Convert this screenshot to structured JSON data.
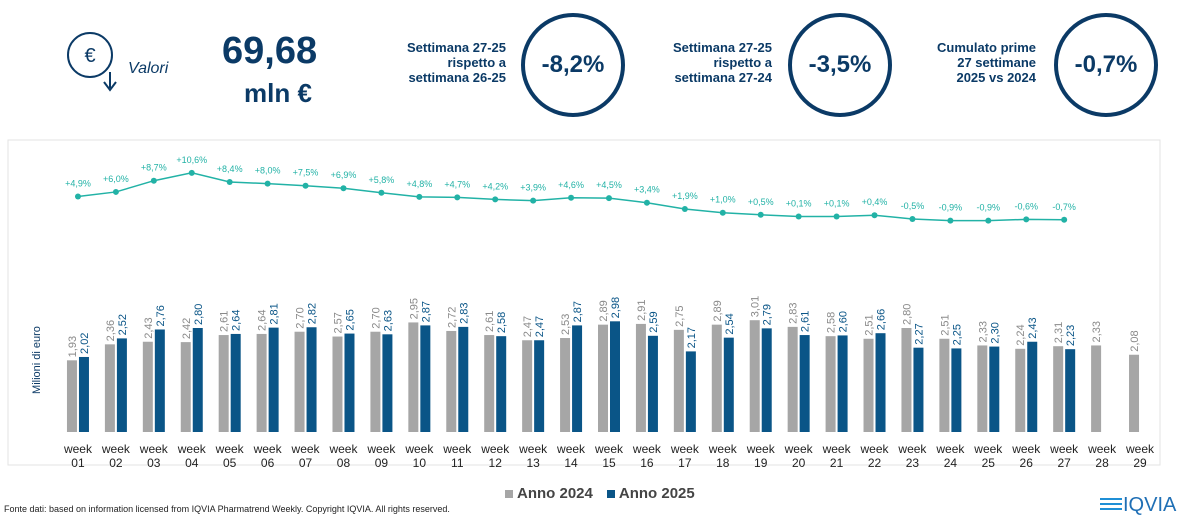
{
  "header": {
    "label": "Valori",
    "total": "69,68",
    "unit": "mln €"
  },
  "kpis": [
    {
      "label": "Settimana 27-25\nrispetto a\nsettimana 26-25",
      "value": "-8,2%"
    },
    {
      "label": "Settimana 27-25\nrispetto a\nsettimana 27-24",
      "value": "-3,5%"
    },
    {
      "label": "Cumulato prime\n27 settimane\n2025 vs 2024",
      "value": "-0,7%"
    }
  ],
  "chart_data": {
    "type": "bar",
    "ylabel": "Milioni di euro",
    "categories": [
      "week 01",
      "week 02",
      "week 03",
      "week 04",
      "week 05",
      "week 06",
      "week 07",
      "week 08",
      "week 09",
      "week 10",
      "week 11",
      "week 12",
      "week 13",
      "week 14",
      "week 15",
      "week 16",
      "week 17",
      "week 18",
      "week 19",
      "week 20",
      "week 21",
      "week 22",
      "week 23",
      "week 24",
      "week 25",
      "week 26",
      "week 27",
      "week 28",
      "week 29"
    ],
    "ylim": [
      0,
      3.5
    ],
    "y2lim": [
      -20,
      12
    ],
    "series": [
      {
        "name": "Anno 2024",
        "color": "#a6a6a6",
        "values": [
          1.93,
          2.36,
          2.43,
          2.42,
          2.61,
          2.64,
          2.7,
          2.57,
          2.7,
          2.95,
          2.72,
          2.61,
          2.47,
          2.53,
          2.89,
          2.91,
          2.75,
          2.89,
          3.01,
          2.83,
          2.58,
          2.51,
          2.8,
          2.51,
          2.33,
          2.24,
          2.31,
          2.33,
          2.08
        ],
        "value_labels": [
          "1,93",
          "2,36",
          "2,43",
          "2,42",
          "2,61",
          "2,64",
          "2,70",
          "2,57",
          "2,70",
          "2,95",
          "2,72",
          "2,61",
          "2,47",
          "2,53",
          "2,89",
          "2,91",
          "2,75",
          "2,89",
          "3,01",
          "2,83",
          "2,58",
          "2,51",
          "2,80",
          "2,51",
          "2,33",
          "2,24",
          "2,31",
          "2,33",
          "2,08"
        ]
      },
      {
        "name": "Anno 2025",
        "color": "#0a5587",
        "values": [
          2.02,
          2.52,
          2.76,
          2.8,
          2.64,
          2.81,
          2.82,
          2.65,
          2.63,
          2.87,
          2.83,
          2.58,
          2.47,
          2.87,
          2.98,
          2.59,
          2.17,
          2.54,
          2.79,
          2.61,
          2.6,
          2.66,
          2.27,
          2.25,
          2.3,
          2.43,
          2.23,
          null,
          null
        ],
        "value_labels": [
          "2,02",
          "2,52",
          "2,76",
          "2,80",
          "2,64",
          "2,81",
          "2,82",
          "2,65",
          "2,63",
          "2,87",
          "2,83",
          "2,58",
          "2,47",
          "2,87",
          "2,98",
          "2,59",
          "2,17",
          "2,54",
          "2,79",
          "2,61",
          "2,60",
          "2,66",
          "2,27",
          "2,25",
          "2,30",
          "2,43",
          "2,23",
          null,
          null
        ]
      },
      {
        "type": "line",
        "axis": "y2",
        "color": "#22b2a6",
        "values": [
          4.9,
          6.0,
          8.7,
          10.6,
          8.4,
          8.0,
          7.5,
          6.9,
          5.8,
          4.8,
          4.7,
          4.2,
          3.9,
          4.6,
          4.5,
          3.4,
          1.9,
          1.0,
          0.5,
          0.1,
          0.1,
          0.4,
          -0.5,
          -0.9,
          -0.9,
          -0.6,
          -0.7,
          null,
          null
        ],
        "value_labels": [
          "+4,9%",
          "+6,0%",
          "+8,7%",
          "+10,6%",
          "+8,4%",
          "+8,0%",
          "+7,5%",
          "+6,9%",
          "+5,8%",
          "+4,8%",
          "+4,7%",
          "+4,2%",
          "+3,9%",
          "+4,6%",
          "+4,5%",
          "+3,4%",
          "+1,9%",
          "+1,0%",
          "+0,5%",
          "+0,1%",
          "+0,1%",
          "+0,4%",
          "-0,5%",
          "-0,9%",
          "-0,9%",
          "-0,6%",
          "-0,7%",
          null,
          null
        ]
      }
    ]
  },
  "footer": {
    "source": "Fonte dati: based on information licensed from IQVIA Pharmatrend Weekly. Copyright IQVIA. All rights reserved.",
    "logo": "IQVIA"
  }
}
